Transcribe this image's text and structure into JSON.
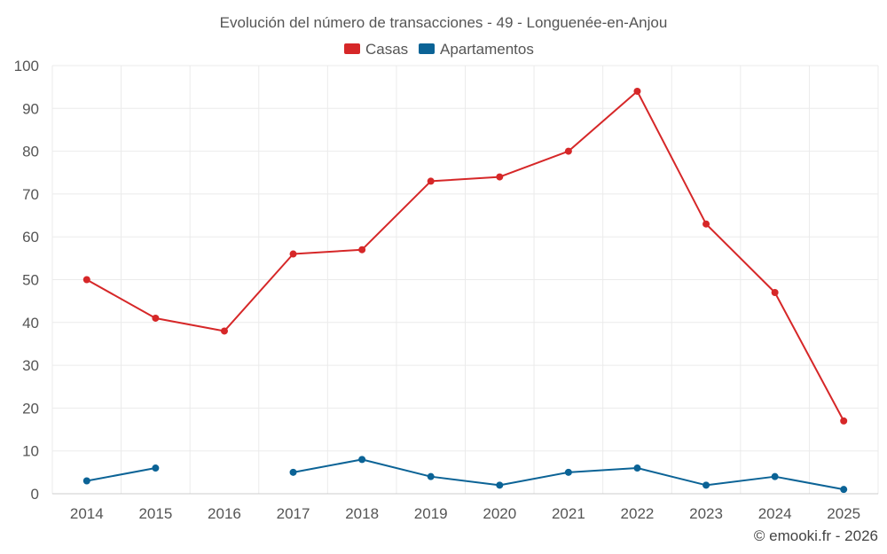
{
  "chart_data": {
    "type": "line",
    "title": "Evolución del número de transacciones - 49 - Longuenée-en-Anjou",
    "categories": [
      "2014",
      "2015",
      "2016",
      "2017",
      "2018",
      "2019",
      "2020",
      "2021",
      "2022",
      "2023",
      "2024",
      "2025"
    ],
    "ylim": [
      0,
      100
    ],
    "yticks": [
      0,
      10,
      20,
      30,
      40,
      50,
      60,
      70,
      80,
      90,
      100
    ],
    "grid": true,
    "legend_position": "top-center",
    "series": [
      {
        "name": "Casas",
        "color": "#d62728",
        "values": [
          50,
          41,
          38,
          56,
          57,
          73,
          74,
          80,
          94,
          63,
          47,
          17
        ]
      },
      {
        "name": "Apartamentos",
        "color": "#0b6396",
        "values": [
          3,
          6,
          null,
          5,
          8,
          4,
          2,
          5,
          6,
          2,
          4,
          1
        ]
      }
    ],
    "credit": "© emooki.fr - 2026"
  }
}
